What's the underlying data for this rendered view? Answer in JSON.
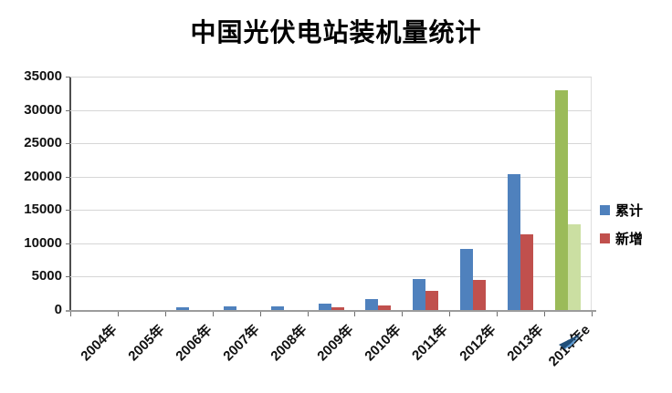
{
  "chart_data": {
    "type": "bar",
    "title": "中国光伏电站装机量统计",
    "categories": [
      "2004年",
      "2005年",
      "2006年",
      "2007年",
      "2008年",
      "2009年",
      "2010年",
      "2011年",
      "2012年",
      "2013年",
      "2014年e"
    ],
    "series": [
      {
        "name": "累计",
        "color": "#4F81BD",
        "values": [
          0,
          0,
          350,
          550,
          600,
          900,
          1700,
          4700,
          9200,
          20400,
          33000
        ]
      },
      {
        "name": "新增",
        "color": "#C0504D",
        "values": [
          0,
          0,
          0,
          0,
          0,
          450,
          700,
          2900,
          4500,
          11300,
          12800
        ]
      }
    ],
    "estimate_category": "2014年e",
    "estimate_colors": [
      "#9BBB59",
      "#CBDFA2"
    ],
    "ylim": [
      0,
      35000
    ],
    "ytick_step": 5000,
    "xlabel": "",
    "ylabel": "",
    "grid": true,
    "legend_position": "right"
  },
  "colors": {
    "gridline": "#d6d6d6",
    "axis_line": "#4d4d4d",
    "baseline": "#9c9c9c",
    "label_text": "#111111",
    "cursor_dark": "#1F4E79",
    "cursor_light": "#5B9BD5"
  },
  "icons": {
    "cursor": "pointer-arrow-cursor"
  }
}
